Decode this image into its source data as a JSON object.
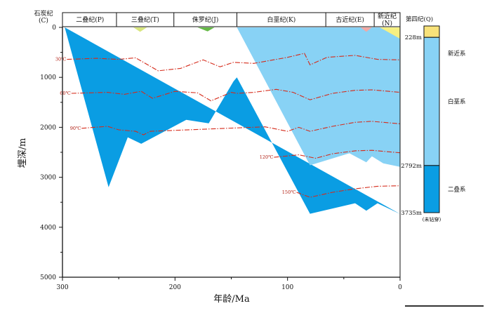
{
  "title": "",
  "chart_data": {
    "type": "area",
    "xlabel": "年龄/Ma",
    "ylabel": "埋深/m",
    "xlim": [
      300,
      0
    ],
    "ylim": [
      5000,
      0
    ],
    "x_ticks": [
      "300",
      "200",
      "100",
      "0"
    ],
    "y_ticks": [
      "0",
      "1000",
      "2000",
      "3000",
      "4000",
      "5000"
    ],
    "corner_header": [
      "石炭纪",
      "(C)"
    ],
    "periods": [
      {
        "label": "二叠纪(P)",
        "start": 299,
        "end": 252
      },
      {
        "label": "三叠纪(T)",
        "start": 252,
        "end": 201
      },
      {
        "label": "侏罗纪(J)",
        "start": 201,
        "end": 145
      },
      {
        "label": "白垩纪(K)",
        "start": 145,
        "end": 66
      },
      {
        "label": "古近纪(E)",
        "start": 66,
        "end": 23
      },
      {
        "label": "新近纪",
        "label2": "(N)",
        "start": 23,
        "end": 0
      }
    ],
    "series": [
      {
        "color": "#0a9de3",
        "top": [
          [
            298,
            0
          ],
          [
            145,
            0
          ]
        ],
        "profile": [
          [
            298,
            0
          ],
          [
            259,
            3200
          ],
          [
            242,
            2200
          ],
          [
            230,
            2330
          ],
          [
            190,
            1850
          ],
          [
            170,
            1920
          ],
          [
            148,
            1080
          ],
          [
            145,
            1000
          ],
          [
            80,
            3730
          ],
          [
            40,
            3520
          ],
          [
            30,
            3670
          ],
          [
            20,
            3520
          ],
          [
            0,
            3735
          ]
        ]
      },
      {
        "color": "#88d2f5",
        "profile": [
          [
            145,
            0
          ],
          [
            0,
            0
          ],
          [
            0,
            2792
          ],
          [
            15,
            2720
          ],
          [
            25,
            2580
          ],
          [
            30,
            2700
          ],
          [
            45,
            2520
          ],
          [
            80,
            2760
          ],
          [
            145,
            0
          ]
        ]
      }
    ],
    "surface_patches": [
      {
        "color": "#d8e67e",
        "points": [
          [
            237,
            0
          ],
          [
            225,
            0
          ],
          [
            231,
            90
          ]
        ]
      },
      {
        "color": "#66b947",
        "points": [
          [
            180,
            0
          ],
          [
            165,
            0
          ],
          [
            171,
            80
          ]
        ]
      },
      {
        "color": "#f2a8a4",
        "points": [
          [
            35,
            0
          ],
          [
            25,
            0
          ],
          [
            30,
            90
          ]
        ]
      },
      {
        "color": "#f6f082",
        "points": [
          [
            18,
            0
          ],
          [
            0,
            0
          ],
          [
            0,
            228
          ]
        ]
      }
    ],
    "isotherms": [
      {
        "label": "30℃",
        "points": [
          [
            296,
            640
          ],
          [
            270,
            620
          ],
          [
            250,
            640
          ],
          [
            235,
            610
          ],
          [
            215,
            870
          ],
          [
            195,
            820
          ],
          [
            175,
            650
          ],
          [
            160,
            790
          ],
          [
            148,
            700
          ],
          [
            130,
            720
          ],
          [
            100,
            600
          ],
          [
            85,
            520
          ],
          [
            80,
            750
          ],
          [
            65,
            600
          ],
          [
            40,
            560
          ],
          [
            20,
            640
          ],
          [
            0,
            650
          ]
        ]
      },
      {
        "label": "60℃",
        "points": [
          [
            292,
            1320
          ],
          [
            260,
            1300
          ],
          [
            245,
            1340
          ],
          [
            230,
            1280
          ],
          [
            220,
            1420
          ],
          [
            200,
            1280
          ],
          [
            180,
            1310
          ],
          [
            168,
            1470
          ],
          [
            150,
            1300
          ],
          [
            145,
            1320
          ],
          [
            130,
            1300
          ],
          [
            110,
            1240
          ],
          [
            95,
            1300
          ],
          [
            80,
            1450
          ],
          [
            60,
            1320
          ],
          [
            40,
            1260
          ],
          [
            25,
            1250
          ],
          [
            0,
            1300
          ]
        ]
      },
      {
        "label": "90℃",
        "points": [
          [
            283,
            2020
          ],
          [
            260,
            1980
          ],
          [
            250,
            2050
          ],
          [
            235,
            2080
          ],
          [
            228,
            2150
          ],
          [
            222,
            2080
          ],
          [
            120,
            1990
          ],
          [
            100,
            2080
          ],
          [
            90,
            2000
          ],
          [
            80,
            2080
          ],
          [
            60,
            1980
          ],
          [
            40,
            1900
          ],
          [
            25,
            1880
          ],
          [
            0,
            1930
          ]
        ]
      },
      {
        "label": "120℃",
        "points": [
          [
            112,
            2600
          ],
          [
            90,
            2550
          ],
          [
            75,
            2620
          ],
          [
            60,
            2530
          ],
          [
            40,
            2470
          ],
          [
            25,
            2460
          ],
          [
            0,
            2510
          ]
        ]
      },
      {
        "label": "150℃",
        "points": [
          [
            92,
            3300
          ],
          [
            80,
            3400
          ],
          [
            60,
            3300
          ],
          [
            40,
            3230
          ],
          [
            20,
            3180
          ],
          [
            0,
            3170
          ]
        ]
      }
    ]
  },
  "strat_column": {
    "header": "第四纪(Q)",
    "units": [
      {
        "name": "新近系",
        "top": 0,
        "bottom": 228,
        "color": "#f8e27a"
      },
      {
        "name": "白垩系",
        "top": 228,
        "bottom": 2792,
        "color": "#88d2f5"
      },
      {
        "name": "二叠系",
        "top": 2792,
        "bottom": 3735,
        "color": "#0a9de3"
      }
    ],
    "depth_labels": [
      "228m",
      "2792m",
      "3735m"
    ],
    "note": "(未钻穿)"
  }
}
